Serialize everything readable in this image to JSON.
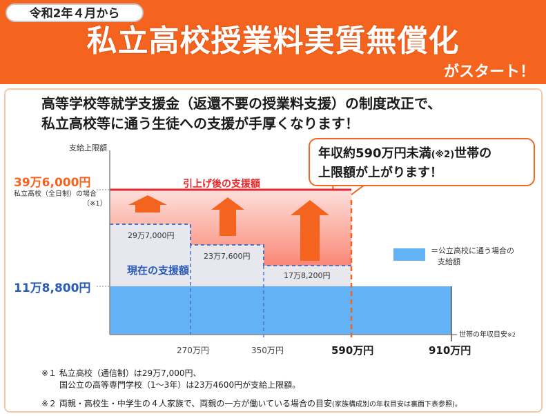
{
  "header": {
    "date_tag": "令和2年４月から",
    "title": "私立高校授業料実質無償化",
    "subtitle": "がスタート！"
  },
  "lead": {
    "line1": "高等学校等就学支援金（返還不要の授業料支援）の制度改正で、",
    "line2": "私立高校等に通う生徒への支援が手厚くなります！"
  },
  "callout": {
    "line1_pre": "年収約590万円未満",
    "line1_note": "(※2)",
    "line1_post": "世帯の",
    "line2": "上限額が上がります！"
  },
  "chart_data": {
    "type": "area",
    "y_axis_label": "支給上限額",
    "x_axis_label": "世帯の年収目安",
    "x_axis_label_note": "※2",
    "x_ticks": [
      "270万円",
      "350万円",
      "590万円",
      "910万円"
    ],
    "y_ticks": [
      "39万6,000円",
      "11万8,800円"
    ],
    "y_tick_notes": [
      "私立高校（全日制）の場合",
      "（※1）"
    ],
    "series": [
      {
        "name": "引上げ後の支援額",
        "color": "#e8262a",
        "segments": [
          {
            "to_income": 590,
            "amount": 396000
          }
        ]
      },
      {
        "name": "現在の支援額",
        "color": "#4a72c4",
        "segments": [
          {
            "to_income": 270,
            "amount": 297000,
            "label": "29万7,000円"
          },
          {
            "to_income": 350,
            "amount": 237600,
            "label": "23万7,600円"
          },
          {
            "to_income": 590,
            "amount": 178200,
            "label": "17万8,200円"
          }
        ]
      },
      {
        "name": "公立高校に通う場合の支給額",
        "color": "#62b2f5",
        "segments": [
          {
            "to_income": 910,
            "amount": 118800
          }
        ]
      }
    ],
    "legend": {
      "line1": "＝公立高校に通う場合の",
      "line2": "支給額"
    }
  },
  "notes": {
    "n1_line1": "※１ 私立高校（通信制）は29万7,000円、",
    "n1_line2": "国公立の高等専門学校（1～3年）は23万4600円が支給上限額。",
    "n2_main": "※２ 両親・高校生・中学生の４人家族で、両親の一方が働いている場合の目安",
    "n2_small": "(家族構成別の年収目安は裏面下表参照)。"
  },
  "colors": {
    "brand_orange": "#f5641e",
    "raise_red": "#e8262a",
    "current_blue": "#4a72c4",
    "public_blue": "#62b2f5"
  }
}
